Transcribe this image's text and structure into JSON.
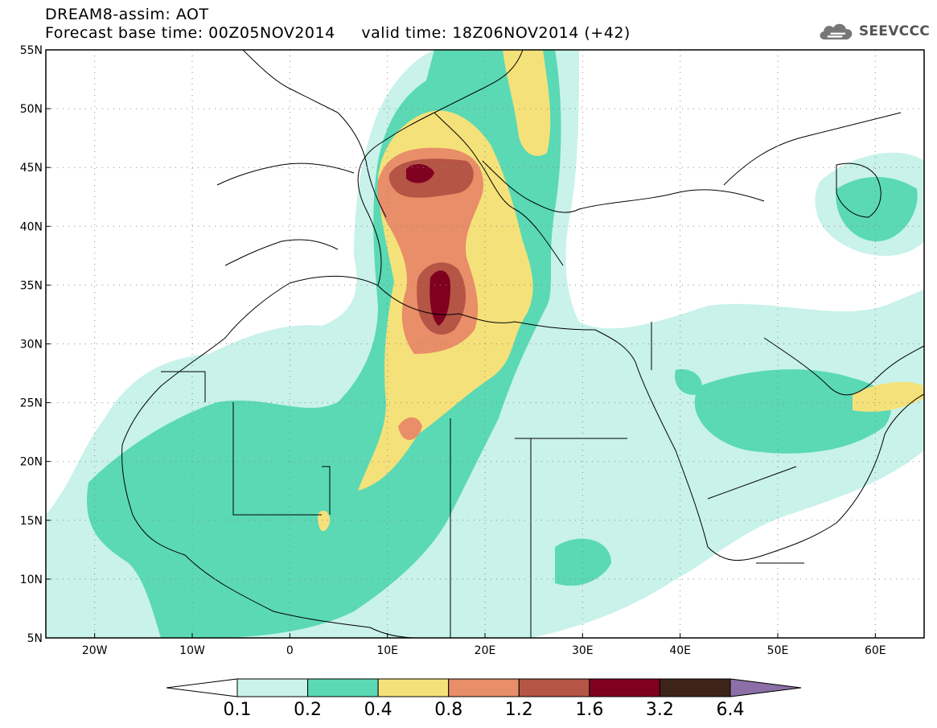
{
  "title": {
    "line1": "DREAM8-assim: AOT",
    "line2": "Forecast base time: 00Z05NOV2014     valid time: 18Z06NOV2014 (+42)"
  },
  "logo": {
    "text": "SEEVCCC",
    "icon": "cloud-icon"
  },
  "map": {
    "lon_range": [
      -25,
      65
    ],
    "lat_range": [
      5,
      55
    ],
    "lon_ticks": [
      {
        "value": -20,
        "label": "20W"
      },
      {
        "value": -10,
        "label": "10W"
      },
      {
        "value": 0,
        "label": "0"
      },
      {
        "value": 10,
        "label": "10E"
      },
      {
        "value": 20,
        "label": "20E"
      },
      {
        "value": 30,
        "label": "30E"
      },
      {
        "value": 40,
        "label": "40E"
      },
      {
        "value": 50,
        "label": "50E"
      },
      {
        "value": 60,
        "label": "60E"
      }
    ],
    "lat_ticks": [
      {
        "value": 55,
        "label": "55N"
      },
      {
        "value": 50,
        "label": "50N"
      },
      {
        "value": 45,
        "label": "45N"
      },
      {
        "value": 40,
        "label": "40N"
      },
      {
        "value": 35,
        "label": "35N"
      },
      {
        "value": 30,
        "label": "30N"
      },
      {
        "value": 25,
        "label": "25N"
      },
      {
        "value": 20,
        "label": "20N"
      },
      {
        "value": 15,
        "label": "15N"
      },
      {
        "value": 10,
        "label": "10N"
      },
      {
        "value": 5,
        "label": "5N"
      }
    ],
    "grid": true
  },
  "colorbar": {
    "colors": [
      "#ffffff",
      "#c8f2ea",
      "#5ad9b4",
      "#f5e17a",
      "#e88e68",
      "#b55545",
      "#800020",
      "#3e2418",
      "#8c6fa6"
    ],
    "labels": [
      "0.1",
      "0.2",
      "0.4",
      "0.8",
      "1.2",
      "1.6",
      "3.2",
      "6.4"
    ]
  }
}
